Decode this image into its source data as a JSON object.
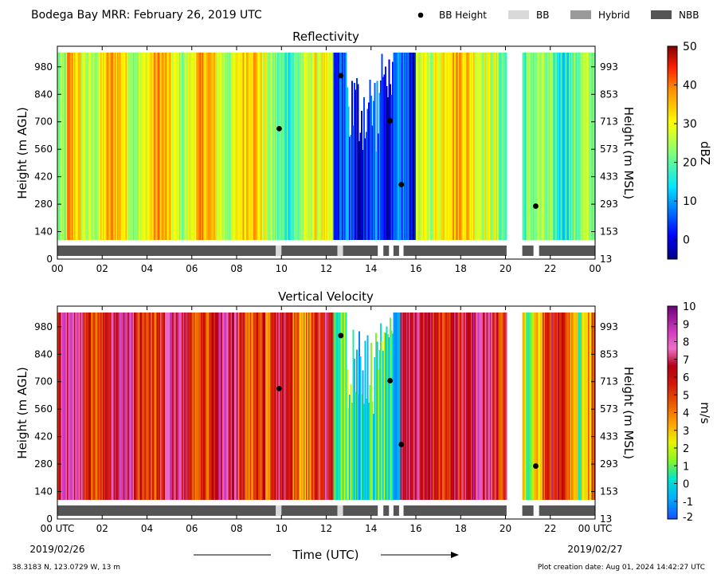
{
  "header": {
    "title": "Bodega Bay MRR:  February 26, 2019 UTC",
    "legend": [
      {
        "label": "BB Height",
        "kind": "dot",
        "color": "#000000"
      },
      {
        "label": "BB",
        "kind": "box",
        "color": "#d9d9d9"
      },
      {
        "label": "Hybrid",
        "kind": "box",
        "color": "#9a9a9a"
      },
      {
        "label": "NBB",
        "kind": "box",
        "color": "#555555"
      }
    ]
  },
  "footer": {
    "location": "38.3183 N, 123.0729 W, 13 m",
    "creation": "Plot creation date: Aug 01, 2024 14:42:27 UTC",
    "xlabel": "Time (UTC)",
    "start_date": "2019/02/26",
    "end_date": "2019/02/27"
  },
  "chart_data": [
    {
      "type": "heatmap",
      "title": "Reflectivity",
      "ylabel_left": "Height (m AGL)",
      "ylabel_right": "Height (m MSL)",
      "x_ticks": [
        "00",
        "02",
        "04",
        "06",
        "08",
        "10",
        "12",
        "14",
        "16",
        "18",
        "20",
        "22",
        "00"
      ],
      "xlim": [
        0,
        24
      ],
      "y_ticks_left": [
        0,
        140,
        280,
        420,
        560,
        700,
        840,
        980
      ],
      "y_ticks_right": [
        13,
        153,
        293,
        433,
        573,
        713,
        853,
        993
      ],
      "ylim": [
        0,
        1085
      ],
      "colorbar": {
        "label": "dBZ",
        "ticks": [
          0,
          10,
          20,
          30,
          40,
          50
        ],
        "range": [
          -5,
          50
        ],
        "colormap": "jet"
      },
      "bb_height": [
        {
          "x": 9.9,
          "y": 665
        },
        {
          "x": 12.65,
          "y": 935
        },
        {
          "x": 14.85,
          "y": 705
        },
        {
          "x": 15.35,
          "y": 380
        },
        {
          "x": 21.35,
          "y": 270
        }
      ],
      "bright_band_class": [
        {
          "start": 0.0,
          "end": 9.75,
          "class": "NBB"
        },
        {
          "start": 9.75,
          "end": 10.0,
          "class": "BB"
        },
        {
          "start": 10.0,
          "end": 12.5,
          "class": "NBB"
        },
        {
          "start": 12.5,
          "end": 12.75,
          "class": "BB"
        },
        {
          "start": 12.75,
          "end": 14.3,
          "class": "NBB"
        },
        {
          "start": 14.55,
          "end": 14.8,
          "class": "NBB"
        },
        {
          "start": 15.0,
          "end": 15.25,
          "class": "NBB"
        },
        {
          "start": 15.45,
          "end": 20.05,
          "class": "NBB"
        },
        {
          "start": 20.75,
          "end": 21.25,
          "class": "NBB"
        },
        {
          "start": 21.5,
          "end": 24.0,
          "class": "NBB"
        }
      ]
    },
    {
      "type": "heatmap",
      "title": "Vertical Velocity",
      "ylabel_left": "Height (m AGL)",
      "ylabel_right": "Height (m MSL)",
      "x_ticks": [
        "00 UTC",
        "02",
        "04",
        "06",
        "08",
        "10",
        "12",
        "14",
        "16",
        "18",
        "20",
        "22",
        "00 UTC"
      ],
      "xlim": [
        0,
        24
      ],
      "y_ticks_left": [
        0,
        140,
        280,
        420,
        560,
        700,
        840,
        980
      ],
      "y_ticks_right": [
        13,
        153,
        293,
        433,
        573,
        713,
        853,
        993
      ],
      "ylim": [
        0,
        1085
      ],
      "colorbar": {
        "label": "m/s",
        "ticks": [
          -2,
          -1,
          0,
          1,
          2,
          3,
          4,
          5,
          6,
          7,
          8,
          9,
          10
        ],
        "range": [
          -2,
          10
        ],
        "colormap": "velocity"
      },
      "bb_height": [
        {
          "x": 9.9,
          "y": 665
        },
        {
          "x": 12.65,
          "y": 935
        },
        {
          "x": 14.85,
          "y": 705
        },
        {
          "x": 15.35,
          "y": 380
        },
        {
          "x": 21.35,
          "y": 270
        }
      ],
      "bright_band_class": [
        {
          "start": 0.0,
          "end": 9.75,
          "class": "NBB"
        },
        {
          "start": 9.75,
          "end": 10.0,
          "class": "BB"
        },
        {
          "start": 10.0,
          "end": 12.5,
          "class": "NBB"
        },
        {
          "start": 12.5,
          "end": 12.75,
          "class": "BB"
        },
        {
          "start": 12.75,
          "end": 14.3,
          "class": "NBB"
        },
        {
          "start": 14.55,
          "end": 14.8,
          "class": "NBB"
        },
        {
          "start": 15.0,
          "end": 15.25,
          "class": "NBB"
        },
        {
          "start": 15.45,
          "end": 20.05,
          "class": "NBB"
        },
        {
          "start": 20.75,
          "end": 21.25,
          "class": "NBB"
        },
        {
          "start": 21.5,
          "end": 24.0,
          "class": "NBB"
        }
      ]
    }
  ]
}
